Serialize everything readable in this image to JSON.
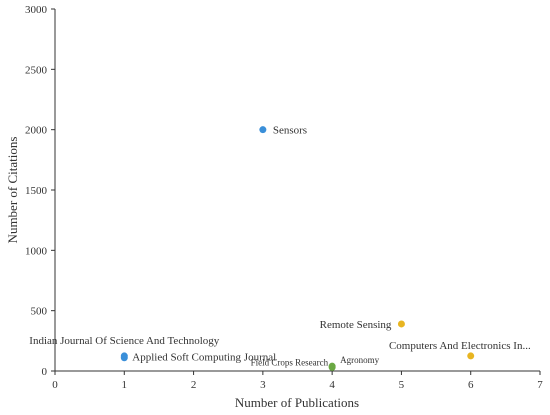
{
  "chart_data": {
    "type": "scatter",
    "title": "",
    "xlabel": "Number of Publications",
    "ylabel": "Number of Citations",
    "xlim": [
      0,
      7
    ],
    "ylim": [
      0,
      3000
    ],
    "xticks": [
      0,
      1,
      2,
      3,
      4,
      5,
      6,
      7
    ],
    "yticks": [
      0,
      500,
      1000,
      1500,
      2000,
      2500,
      3000
    ],
    "grid": false,
    "colors": {
      "blue": "#3a8fd9",
      "green": "#6aa843",
      "gold": "#e8b521",
      "axis": "#333333"
    },
    "points": [
      {
        "label": "Sensors",
        "x": 3,
        "y": 2000,
        "color": "#3a8fd9"
      },
      {
        "label": "Remote Sensing",
        "x": 5,
        "y": 390,
        "color": "#e8b521"
      },
      {
        "label": "Computers And Electronics In...",
        "x": 6,
        "y": 125,
        "color": "#e8b521"
      },
      {
        "label": "Indian Journal Of Science And Technology",
        "x": 1,
        "y": 125,
        "color": "#3a8fd9"
      },
      {
        "label": "Applied Soft Computing Journal",
        "x": 1,
        "y": 110,
        "color": "#3a8fd9"
      },
      {
        "label": "Field Crops Research",
        "x": 4,
        "y": 30,
        "color": "#6aa843"
      },
      {
        "label": "Agronomy",
        "x": 4,
        "y": 40,
        "color": "#6aa843"
      }
    ]
  }
}
